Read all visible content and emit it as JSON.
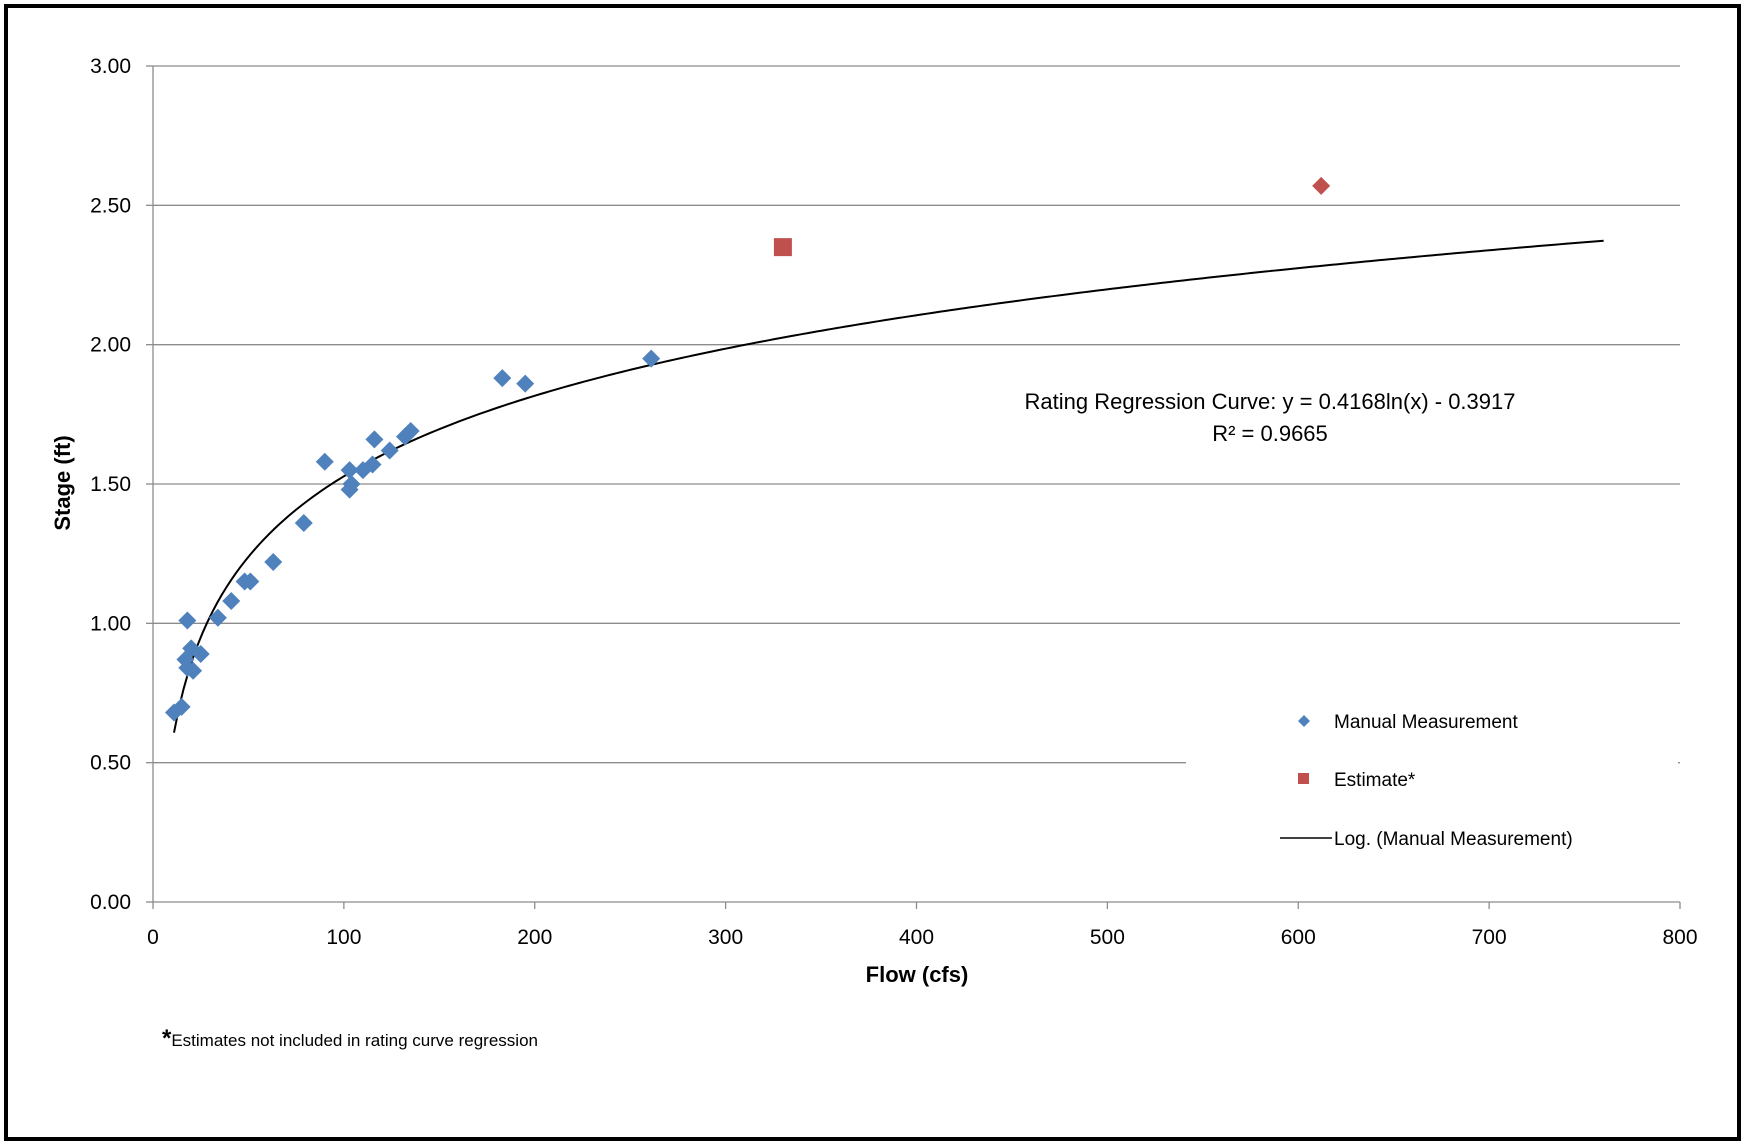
{
  "chart_data": {
    "type": "scatter",
    "title": "",
    "xlabel": "Flow (cfs)",
    "ylabel": "Stage (ft)",
    "xlim": [
      0,
      800
    ],
    "ylim": [
      0,
      3
    ],
    "x_ticks": [
      "0",
      "100",
      "200",
      "300",
      "400",
      "500",
      "600",
      "700",
      "800"
    ],
    "y_ticks": [
      "0.00",
      "0.50",
      "1.00",
      "1.50",
      "2.00",
      "2.50",
      "3.00"
    ],
    "grid": "horizontal",
    "legend_position": "right",
    "series": [
      {
        "name": "Manual Measurement",
        "marker": "diamond",
        "color": "#4F81BD",
        "points": [
          [
            11,
            0.68
          ],
          [
            15,
            0.7
          ],
          [
            17,
            0.87
          ],
          [
            18,
            0.84
          ],
          [
            18,
            1.01
          ],
          [
            20,
            0.91
          ],
          [
            21,
            0.83
          ],
          [
            25,
            0.89
          ],
          [
            34,
            1.02
          ],
          [
            41,
            1.08
          ],
          [
            48,
            1.15
          ],
          [
            51,
            1.15
          ],
          [
            63,
            1.22
          ],
          [
            79,
            1.36
          ],
          [
            90,
            1.58
          ],
          [
            103,
            1.55
          ],
          [
            103,
            1.48
          ],
          [
            104,
            1.5
          ],
          [
            110,
            1.55
          ],
          [
            115,
            1.57
          ],
          [
            116,
            1.66
          ],
          [
            124,
            1.62
          ],
          [
            132,
            1.67
          ],
          [
            135,
            1.69
          ],
          [
            183,
            1.88
          ],
          [
            195,
            1.86
          ],
          [
            261,
            1.95
          ]
        ]
      },
      {
        "name": "Estimate*",
        "marker": "square",
        "color": "#C0504D",
        "points": [
          [
            330,
            2.35
          ]
        ]
      },
      {
        "name": "",
        "marker": "diamond",
        "color": "#C0504D",
        "points": [
          [
            612,
            2.57
          ]
        ]
      },
      {
        "name": "Log. (Manual Measurement)",
        "type": "trendline",
        "color": "#000000",
        "equation": {
          "a": 0.4168,
          "b": -0.3917
        },
        "x_range": [
          11,
          760
        ]
      }
    ],
    "annotation": {
      "line1": "Rating Regression Curve:  y = 0.4168ln(x) - 0.3917",
      "line2": "R² = 0.9665"
    }
  },
  "footnote": {
    "star": "*",
    "text": "Estimates not included in rating curve regression"
  }
}
